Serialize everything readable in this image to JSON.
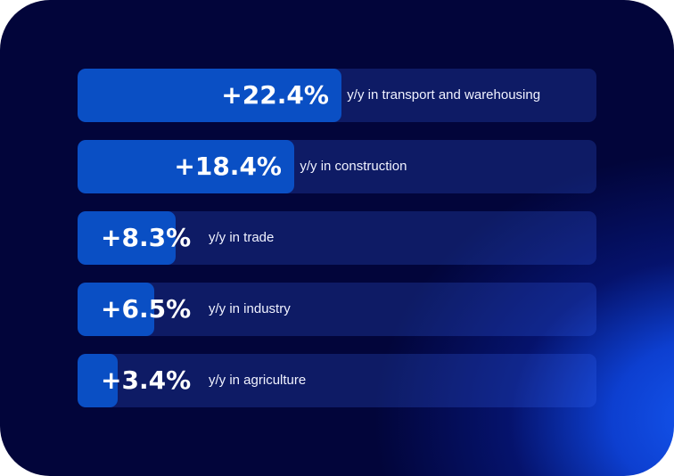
{
  "chart_data": {
    "type": "bar",
    "orientation": "horizontal",
    "categories": [
      "y/y in transport and warehousing",
      "y/y in construction",
      "y/y in trade",
      "y/y in industry",
      "y/y in agriculture"
    ],
    "values": [
      22.4,
      18.4,
      8.3,
      6.5,
      3.4
    ],
    "value_labels": [
      "+22.4%",
      "+18.4%",
      "+8.3%",
      "+6.5%",
      "+3.4%"
    ],
    "xlim": [
      0,
      44
    ],
    "grid": false,
    "legend": "none"
  },
  "colors": {
    "background": "#02053a",
    "glow": "#1457f0",
    "bar_fill": "#0a4fc4",
    "track": "rgba(60,110,255,0.22)",
    "text": "#ffffff"
  }
}
